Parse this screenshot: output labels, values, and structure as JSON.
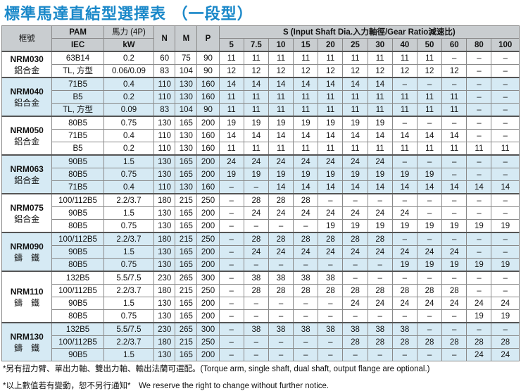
{
  "title": "標準馬達直結型選擇表 （一段型）",
  "header": {
    "frame": "框號",
    "pam_iec": [
      "PAM",
      "IEC"
    ],
    "power": [
      "馬力 (4P)",
      "kW"
    ],
    "n": "N",
    "m": "M",
    "p": "P",
    "s_title": "S (Input Shaft Dia.入力軸徑/Gear Ratio減速比)",
    "ratios": [
      "5",
      "7.5",
      "10",
      "15",
      "20",
      "25",
      "30",
      "40",
      "50",
      "60",
      "80",
      "100"
    ]
  },
  "groups": [
    {
      "frame": "NRM030",
      "material": "鋁合金",
      "shade": false,
      "rows": [
        {
          "pam": "63B14",
          "kw": "0.2",
          "n": "60",
          "m": "75",
          "p": "90",
          "s": [
            "11",
            "11",
            "11",
            "11",
            "11",
            "11",
            "11",
            "11",
            "11",
            "–",
            "–",
            "–"
          ]
        },
        {
          "pam": "TL, 方型",
          "kw": "0.06/0.09",
          "n": "83",
          "m": "104",
          "p": "90",
          "s": [
            "12",
            "12",
            "12",
            "12",
            "12",
            "12",
            "12",
            "12",
            "12",
            "12",
            "–",
            "–"
          ]
        }
      ]
    },
    {
      "frame": "NRM040",
      "material": "鋁合金",
      "shade": true,
      "rows": [
        {
          "pam": "71B5",
          "kw": "0.4",
          "n": "110",
          "m": "130",
          "p": "160",
          "s": [
            "14",
            "14",
            "14",
            "14",
            "14",
            "14",
            "14",
            "–",
            "–",
            "–",
            "–",
            "–"
          ]
        },
        {
          "pam": "B5",
          "kw": "0.2",
          "n": "110",
          "m": "130",
          "p": "160",
          "s": [
            "11",
            "11",
            "11",
            "11",
            "11",
            "11",
            "11",
            "11",
            "11",
            "11",
            "–",
            "–"
          ]
        },
        {
          "pam": "TL, 方型",
          "kw": "0.09",
          "n": "83",
          "m": "104",
          "p": "90",
          "s": [
            "11",
            "11",
            "11",
            "11",
            "11",
            "11",
            "11",
            "11",
            "11",
            "11",
            "–",
            "–"
          ]
        }
      ]
    },
    {
      "frame": "NRM050",
      "material": "鋁合金",
      "shade": false,
      "rows": [
        {
          "pam": "80B5",
          "kw": "0.75",
          "n": "130",
          "m": "165",
          "p": "200",
          "s": [
            "19",
            "19",
            "19",
            "19",
            "19",
            "19",
            "19",
            "–",
            "–",
            "–",
            "–",
            "–"
          ]
        },
        {
          "pam": "71B5",
          "kw": "0.4",
          "n": "110",
          "m": "130",
          "p": "160",
          "s": [
            "14",
            "14",
            "14",
            "14",
            "14",
            "14",
            "14",
            "14",
            "14",
            "14",
            "–",
            "–"
          ]
        },
        {
          "pam": "B5",
          "kw": "0.2",
          "n": "110",
          "m": "130",
          "p": "160",
          "s": [
            "11",
            "11",
            "11",
            "11",
            "11",
            "11",
            "11",
            "11",
            "11",
            "11",
            "11",
            "11"
          ]
        }
      ]
    },
    {
      "frame": "NRM063",
      "material": "鋁合金",
      "shade": true,
      "rows": [
        {
          "pam": "90B5",
          "kw": "1.5",
          "n": "130",
          "m": "165",
          "p": "200",
          "s": [
            "24",
            "24",
            "24",
            "24",
            "24",
            "24",
            "24",
            "–",
            "–",
            "–",
            "–",
            "–"
          ]
        },
        {
          "pam": "80B5",
          "kw": "0.75",
          "n": "130",
          "m": "165",
          "p": "200",
          "s": [
            "19",
            "19",
            "19",
            "19",
            "19",
            "19",
            "19",
            "19",
            "19",
            "–",
            "–",
            "–"
          ]
        },
        {
          "pam": "71B5",
          "kw": "0.4",
          "n": "110",
          "m": "130",
          "p": "160",
          "s": [
            "–",
            "–",
            "14",
            "14",
            "14",
            "14",
            "14",
            "14",
            "14",
            "14",
            "14",
            "14"
          ]
        }
      ]
    },
    {
      "frame": "NRM075",
      "material": "鋁合金",
      "shade": false,
      "rows": [
        {
          "pam": "100/112B5",
          "kw": "2.2/3.7",
          "n": "180",
          "m": "215",
          "p": "250",
          "s": [
            "–",
            "28",
            "28",
            "28",
            "–",
            "–",
            "–",
            "–",
            "–",
            "–",
            "–",
            "–"
          ]
        },
        {
          "pam": "90B5",
          "kw": "1.5",
          "n": "130",
          "m": "165",
          "p": "200",
          "s": [
            "–",
            "24",
            "24",
            "24",
            "24",
            "24",
            "24",
            "24",
            "–",
            "–",
            "–",
            "–"
          ]
        },
        {
          "pam": "80B5",
          "kw": "0.75",
          "n": "130",
          "m": "165",
          "p": "200",
          "s": [
            "–",
            "–",
            "–",
            "–",
            "19",
            "19",
            "19",
            "19",
            "19",
            "19",
            "19",
            "19"
          ]
        }
      ]
    },
    {
      "frame": "NRM090",
      "material": "鑄　鐵",
      "shade": true,
      "rows": [
        {
          "pam": "100/112B5",
          "kw": "2.2/3.7",
          "n": "180",
          "m": "215",
          "p": "250",
          "s": [
            "–",
            "28",
            "28",
            "28",
            "28",
            "28",
            "28",
            "–",
            "–",
            "–",
            "–",
            "–"
          ]
        },
        {
          "pam": "90B5",
          "kw": "1.5",
          "n": "130",
          "m": "165",
          "p": "200",
          "s": [
            "–",
            "24",
            "24",
            "24",
            "24",
            "24",
            "24",
            "24",
            "24",
            "24",
            "–",
            "–"
          ]
        },
        {
          "pam": "80B5",
          "kw": "0.75",
          "n": "130",
          "m": "165",
          "p": "200",
          "s": [
            "–",
            "–",
            "–",
            "–",
            "–",
            "–",
            "–",
            "19",
            "19",
            "19",
            "19",
            "19"
          ]
        }
      ]
    },
    {
      "frame": "NRM110",
      "material": "鑄　鐵",
      "shade": false,
      "rows": [
        {
          "pam": "132B5",
          "kw": "5.5/7.5",
          "n": "230",
          "m": "265",
          "p": "300",
          "s": [
            "–",
            "38",
            "38",
            "38",
            "38",
            "–",
            "–",
            "–",
            "–",
            "–",
            "–",
            "–"
          ]
        },
        {
          "pam": "100/112B5",
          "kw": "2.2/3.7",
          "n": "180",
          "m": "215",
          "p": "250",
          "s": [
            "–",
            "28",
            "28",
            "28",
            "28",
            "28",
            "28",
            "28",
            "28",
            "28",
            "–",
            "–"
          ]
        },
        {
          "pam": "90B5",
          "kw": "1.5",
          "n": "130",
          "m": "165",
          "p": "200",
          "s": [
            "–",
            "–",
            "–",
            "–",
            "–",
            "24",
            "24",
            "24",
            "24",
            "24",
            "24",
            "24"
          ]
        },
        {
          "pam": "80B5",
          "kw": "0.75",
          "n": "130",
          "m": "165",
          "p": "200",
          "s": [
            "–",
            "–",
            "–",
            "–",
            "–",
            "–",
            "–",
            "–",
            "–",
            "–",
            "19",
            "19"
          ]
        }
      ]
    },
    {
      "frame": "NRM130",
      "material": "鑄　鐵",
      "shade": true,
      "rows": [
        {
          "pam": "132B5",
          "kw": "5.5/7.5",
          "n": "230",
          "m": "265",
          "p": "300",
          "s": [
            "–",
            "38",
            "38",
            "38",
            "38",
            "38",
            "38",
            "38",
            "–",
            "–",
            "–",
            "–"
          ]
        },
        {
          "pam": "100/112B5",
          "kw": "2.2/3.7",
          "n": "180",
          "m": "215",
          "p": "250",
          "s": [
            "–",
            "–",
            "–",
            "–",
            "–",
            "28",
            "28",
            "28",
            "28",
            "28",
            "28",
            "28"
          ]
        },
        {
          "pam": "90B5",
          "kw": "1.5",
          "n": "130",
          "m": "165",
          "p": "200",
          "s": [
            "–",
            "–",
            "–",
            "–",
            "–",
            "–",
            "–",
            "–",
            "–",
            "–",
            "24",
            "24"
          ]
        }
      ]
    }
  ],
  "notes": [
    "*另有扭力臂、單出力軸、雙出力軸、輸出法蘭可選配。(Torque arm, single shaft, dual shaft, output flange are optional.)",
    "*以上數值若有變動，恕不另行通知*　We reserve the right to change without further notice."
  ]
}
